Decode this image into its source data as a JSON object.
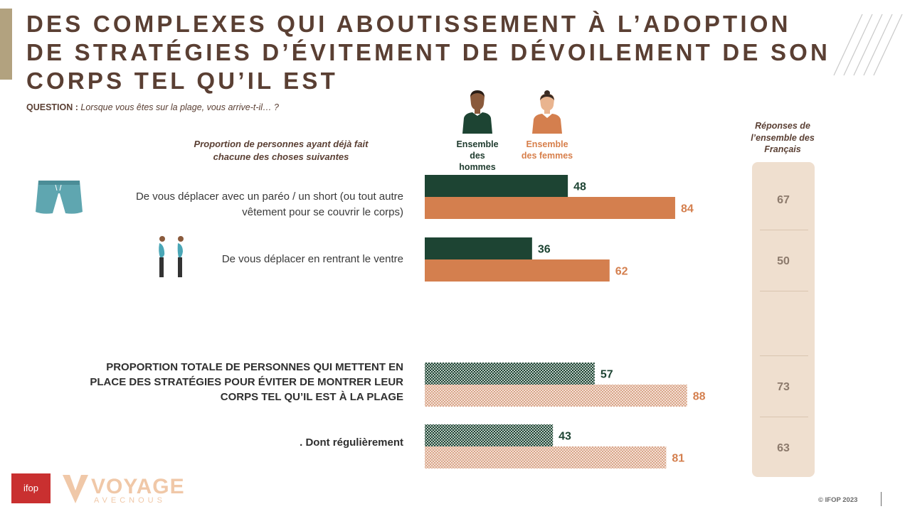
{
  "title_lines": [
    "DES COMPLEXES QUI ABOUTISSEMENT À L’ADOPTION",
    "DE STRATÉGIES D’ÉVITEMENT DE DÉVOILEMENT DE SON",
    "CORPS TEL QU’IL EST"
  ],
  "question_label": "QUESTION :",
  "question_text": "Lorsque vous êtes sur la plage, vous arrive-t-il… ?",
  "proportion_caption_lines": [
    "Proportion de personnes ayant déjà fait",
    "chacune des choses suivantes"
  ],
  "legend": {
    "men_lines": [
      "Ensemble",
      "des hommes"
    ],
    "women_lines": [
      "Ensemble",
      "des femmes"
    ]
  },
  "responses_header_lines": [
    "Réponses de",
    "l’ensemble des",
    "Français"
  ],
  "colors": {
    "men": "#1d4433",
    "women": "#d47f4e",
    "responses_bg": "#efdfcf",
    "title": "#5a3f33"
  },
  "icons": {
    "row1": "shorts-icon",
    "row2": "posture-icon",
    "men": "man-icon",
    "women": "woman-icon"
  },
  "row_labels": {
    "row1": [
      "De vous déplacer avec un paréo / un short (ou tout autre",
      "vêtement pour se couvrir le corps)"
    ],
    "row2": [
      "De vous déplacer en rentrant le ventre"
    ],
    "row3": [
      "PROPORTION TOTALE DE PERSONNES QUI METTENT EN",
      "PLACE DES STRATÉGIES POUR ÉVITER DE MONTRER LEUR",
      "CORPS TEL QU’IL EST À LA PLAGE"
    ],
    "row4": [
      ". Dont régulièrement"
    ]
  },
  "chart_data": {
    "type": "bar",
    "orientation": "horizontal",
    "categories": [
      "De vous déplacer avec un paréo / un short (ou tout autre vêtement pour se couvrir le corps)",
      "De vous déplacer en rentrant le ventre",
      "PROPORTION TOTALE DE PERSONNES QUI METTENT EN PLACE DES STRATÉGIES POUR ÉVITER DE MONTRER LEUR CORPS TEL QU’IL EST À LA PLAGE",
      ". Dont régulièrement"
    ],
    "series": [
      {
        "name": "Ensemble des hommes",
        "values": [
          48,
          36,
          57,
          43
        ]
      },
      {
        "name": "Ensemble des femmes",
        "values": [
          84,
          62,
          88,
          81
        ]
      }
    ],
    "responses_ensemble": [
      67,
      50,
      73,
      63
    ],
    "pattern_rows": [
      false,
      false,
      true,
      true
    ],
    "xlim": [
      0,
      100
    ]
  },
  "footer": {
    "ifop": "ifop",
    "voyage": "VOYAGE",
    "voyage_sub": "AVECNOUS",
    "copyright": "© IFOP 2023"
  }
}
